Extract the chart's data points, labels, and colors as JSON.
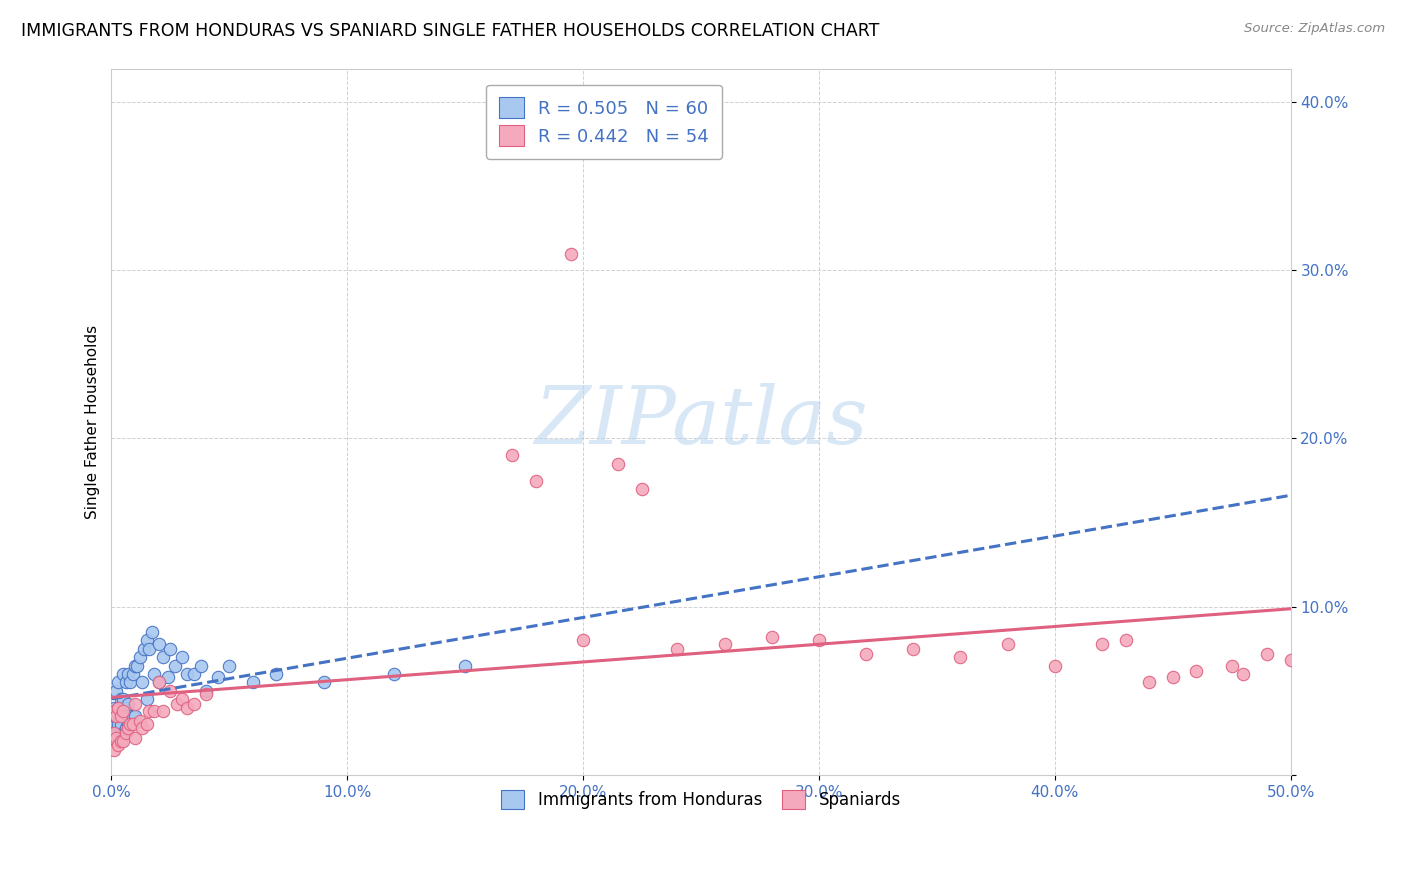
{
  "title": "IMMIGRANTS FROM HONDURAS VS SPANIARD SINGLE FATHER HOUSEHOLDS CORRELATION CHART",
  "source": "Source: ZipAtlas.com",
  "ylabel": "Single Father Households",
  "xmin": 0.0,
  "xmax": 0.5,
  "ymin": 0.0,
  "ymax": 0.42,
  "xticks": [
    0.0,
    0.1,
    0.2,
    0.3,
    0.4,
    0.5
  ],
  "xtick_labels": [
    "0.0%",
    "10.0%",
    "20.0%",
    "30.0%",
    "40.0%",
    "50.0%"
  ],
  "yticks": [
    0.0,
    0.1,
    0.2,
    0.3,
    0.4
  ],
  "ytick_labels": [
    "",
    "10.0%",
    "20.0%",
    "30.0%",
    "40.0%"
  ],
  "legend1_label": "R = 0.505   N = 60",
  "legend2_label": "R = 0.442   N = 54",
  "blue_face_color": "#A8C8F0",
  "blue_edge_color": "#4472C4",
  "pink_face_color": "#F4AABC",
  "pink_edge_color": "#E06080",
  "blue_line_color": "#4472C4",
  "pink_line_color": "#E06080",
  "watermark_color": "#B8D4F0",
  "tick_color": "#4472C4",
  "grid_color": "#CCCCCC",
  "blue_scatter_x": [
    0.001,
    0.001,
    0.001,
    0.001,
    0.001,
    0.002,
    0.002,
    0.002,
    0.002,
    0.002,
    0.003,
    0.003,
    0.003,
    0.003,
    0.004,
    0.004,
    0.004,
    0.005,
    0.005,
    0.005,
    0.005,
    0.006,
    0.006,
    0.006,
    0.007,
    0.007,
    0.007,
    0.008,
    0.008,
    0.009,
    0.009,
    0.01,
    0.01,
    0.011,
    0.012,
    0.013,
    0.014,
    0.015,
    0.015,
    0.016,
    0.017,
    0.018,
    0.02,
    0.02,
    0.022,
    0.024,
    0.025,
    0.027,
    0.03,
    0.032,
    0.035,
    0.038,
    0.04,
    0.045,
    0.05,
    0.06,
    0.07,
    0.09,
    0.12,
    0.15
  ],
  "blue_scatter_y": [
    0.02,
    0.025,
    0.03,
    0.035,
    0.04,
    0.02,
    0.025,
    0.03,
    0.035,
    0.05,
    0.025,
    0.03,
    0.04,
    0.055,
    0.025,
    0.03,
    0.045,
    0.025,
    0.035,
    0.045,
    0.06,
    0.028,
    0.04,
    0.055,
    0.03,
    0.042,
    0.06,
    0.03,
    0.055,
    0.035,
    0.06,
    0.035,
    0.065,
    0.065,
    0.07,
    0.055,
    0.075,
    0.045,
    0.08,
    0.075,
    0.085,
    0.06,
    0.055,
    0.078,
    0.07,
    0.058,
    0.075,
    0.065,
    0.07,
    0.06,
    0.06,
    0.065,
    0.05,
    0.058,
    0.065,
    0.055,
    0.06,
    0.055,
    0.06,
    0.065
  ],
  "pink_scatter_x": [
    0.001,
    0.001,
    0.001,
    0.002,
    0.002,
    0.003,
    0.003,
    0.004,
    0.004,
    0.005,
    0.005,
    0.006,
    0.007,
    0.008,
    0.009,
    0.01,
    0.01,
    0.012,
    0.013,
    0.015,
    0.016,
    0.018,
    0.02,
    0.022,
    0.025,
    0.028,
    0.03,
    0.032,
    0.035,
    0.04,
    0.17,
    0.18,
    0.195,
    0.2,
    0.215,
    0.225,
    0.24,
    0.26,
    0.28,
    0.3,
    0.32,
    0.34,
    0.36,
    0.38,
    0.4,
    0.42,
    0.44,
    0.46,
    0.48,
    0.49,
    0.5,
    0.43,
    0.45,
    0.475
  ],
  "pink_scatter_y": [
    0.015,
    0.025,
    0.038,
    0.022,
    0.035,
    0.018,
    0.04,
    0.02,
    0.035,
    0.02,
    0.038,
    0.025,
    0.028,
    0.03,
    0.03,
    0.022,
    0.042,
    0.032,
    0.028,
    0.03,
    0.038,
    0.038,
    0.055,
    0.038,
    0.05,
    0.042,
    0.045,
    0.04,
    0.042,
    0.048,
    0.19,
    0.175,
    0.31,
    0.08,
    0.185,
    0.17,
    0.075,
    0.078,
    0.082,
    0.08,
    0.072,
    0.075,
    0.07,
    0.078,
    0.065,
    0.078,
    0.055,
    0.062,
    0.06,
    0.072,
    0.068,
    0.08,
    0.058,
    0.065
  ]
}
